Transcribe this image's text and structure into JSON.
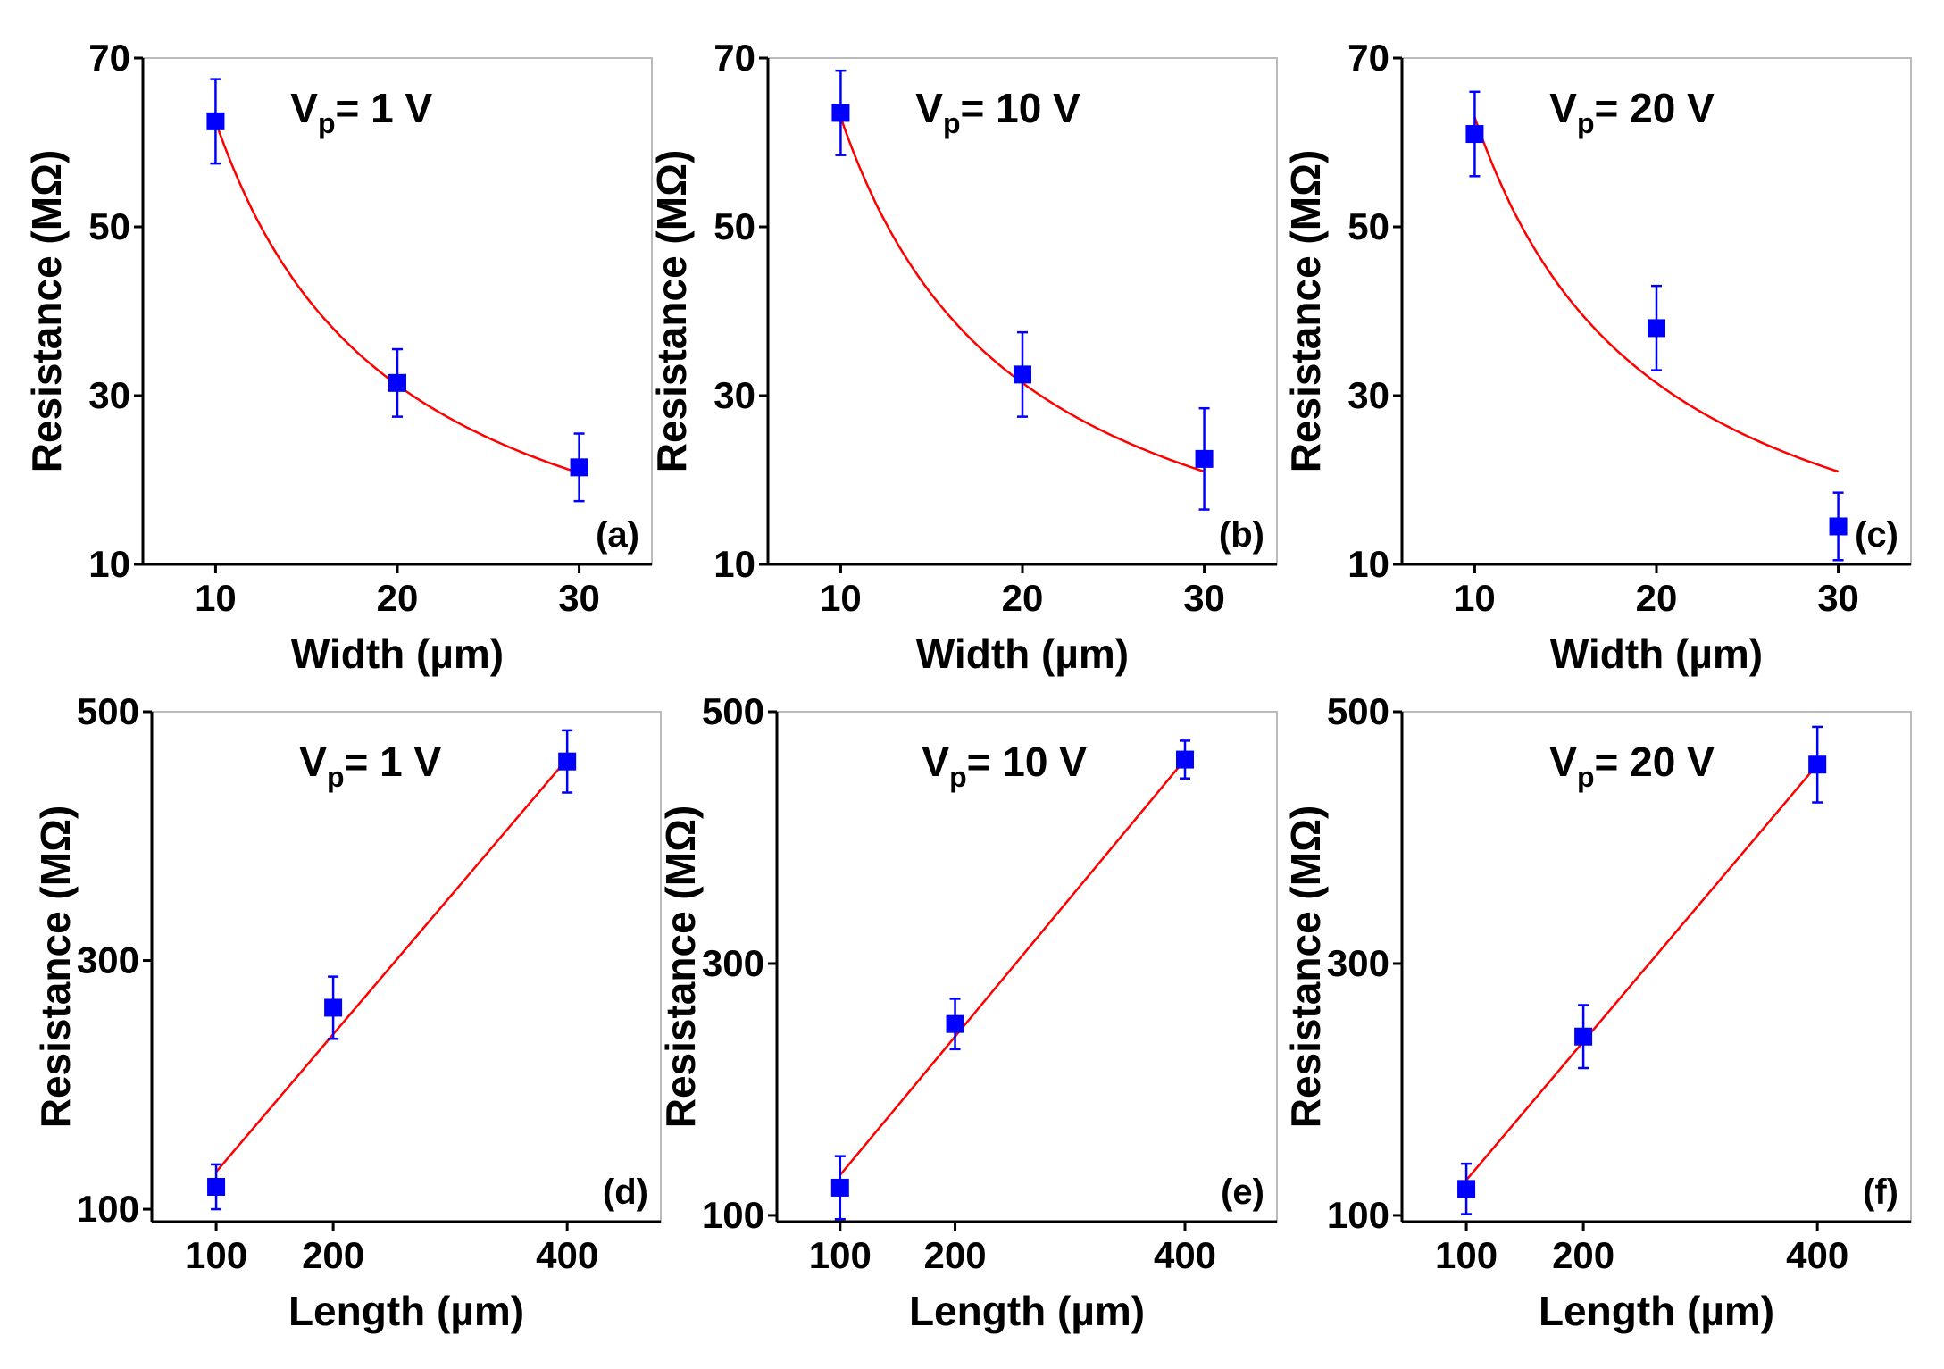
{
  "chart_data": [
    {
      "id": "a",
      "type": "scatter",
      "panel_label": "(a)",
      "annotation": {
        "prefix": "V",
        "sub": "p",
        "value": "= 1 V"
      },
      "xlabel": "Width (µm)",
      "ylabel": "Resistance (MΩ)",
      "xlim": [
        6,
        34
      ],
      "ylim": [
        10,
        70
      ],
      "xticks": [
        10,
        20,
        30
      ],
      "xtick_labels": [
        "10",
        "20",
        "30"
      ],
      "yticks": [
        10,
        30,
        50,
        70
      ],
      "ytick_labels": [
        "10",
        "30",
        "50",
        "70"
      ],
      "series": [
        {
          "name": "measured",
          "x": [
            10,
            20,
            30
          ],
          "y": [
            62.5,
            31.5,
            21.5
          ],
          "yerr": [
            5,
            4,
            4
          ]
        },
        {
          "name": "fit",
          "kind": "fit-inverse",
          "k": 625,
          "x_range": [
            10,
            30
          ]
        }
      ]
    },
    {
      "id": "b",
      "type": "scatter",
      "panel_label": "(b)",
      "annotation": {
        "prefix": "V",
        "sub": "p",
        "value": "= 10 V"
      },
      "xlabel": "Width (µm)",
      "ylabel": "Resistance (MΩ)",
      "xlim": [
        6,
        34
      ],
      "ylim": [
        10,
        70
      ],
      "xticks": [
        10,
        20,
        30
      ],
      "xtick_labels": [
        "10",
        "20",
        "30"
      ],
      "yticks": [
        10,
        30,
        50,
        70
      ],
      "ytick_labels": [
        "10",
        "30",
        "50",
        "70"
      ],
      "series": [
        {
          "name": "measured",
          "x": [
            10,
            20,
            30
          ],
          "y": [
            63.5,
            32.5,
            22.5
          ],
          "yerr": [
            5,
            5,
            6
          ]
        },
        {
          "name": "fit",
          "kind": "fit-inverse",
          "k": 630,
          "x_range": [
            10,
            30
          ]
        }
      ]
    },
    {
      "id": "c",
      "type": "scatter",
      "panel_label": "(c)",
      "annotation": {
        "prefix": "V",
        "sub": "p",
        "value": "= 20 V"
      },
      "xlabel": "Width (µm)",
      "ylabel": "Resistance (MΩ)",
      "xlim": [
        6,
        34
      ],
      "ylim": [
        10,
        70
      ],
      "xticks": [
        10,
        20,
        30
      ],
      "xtick_labels": [
        "10",
        "20",
        "30"
      ],
      "yticks": [
        10,
        30,
        50,
        70
      ],
      "ytick_labels": [
        "10",
        "30",
        "50",
        "70"
      ],
      "series": [
        {
          "name": "measured",
          "x": [
            10,
            20,
            30
          ],
          "y": [
            61,
            38,
            14.5
          ],
          "yerr": [
            5,
            5,
            4
          ]
        },
        {
          "name": "fit",
          "kind": "fit-inverse",
          "k": 630,
          "x_range": [
            10,
            30
          ]
        }
      ]
    },
    {
      "id": "d",
      "type": "scatter",
      "panel_label": "(d)",
      "annotation": {
        "prefix": "V",
        "sub": "p",
        "value": "= 1 V"
      },
      "xlabel": "Length (µm)",
      "ylabel": "Resistance (MΩ)",
      "xlim": [
        45,
        480
      ],
      "ylim": [
        90,
        500
      ],
      "xticks": [
        100,
        200,
        400
      ],
      "xtick_labels": [
        "100",
        "200",
        "400"
      ],
      "yticks": [
        100,
        300,
        500
      ],
      "ytick_labels": [
        "100",
        "300",
        "500"
      ],
      "series": [
        {
          "name": "measured",
          "x": [
            100,
            200,
            400
          ],
          "y": [
            118,
            262,
            460
          ],
          "yerr": [
            18,
            25,
            25
          ]
        },
        {
          "name": "fit",
          "kind": "fit-linear",
          "x0": 100,
          "y0": 130,
          "x1": 400,
          "y1": 462
        }
      ]
    },
    {
      "id": "e",
      "type": "scatter",
      "panel_label": "(e)",
      "annotation": {
        "prefix": "V",
        "sub": "p",
        "value": "= 10 V"
      },
      "xlabel": "Length (µm)",
      "ylabel": "Resistance (MΩ)",
      "xlim": [
        45,
        480
      ],
      "ylim": [
        95,
        500
      ],
      "xticks": [
        100,
        200,
        400
      ],
      "xtick_labels": [
        "100",
        "200",
        "400"
      ],
      "yticks": [
        100,
        300,
        500
      ],
      "ytick_labels": [
        "100",
        "300",
        "500"
      ],
      "series": [
        {
          "name": "measured",
          "x": [
            100,
            200,
            400
          ],
          "y": [
            122,
            252,
            462
          ],
          "yerr": [
            25,
            20,
            15
          ]
        },
        {
          "name": "fit",
          "kind": "fit-linear",
          "x0": 100,
          "y0": 132,
          "x1": 400,
          "y1": 462
        }
      ]
    },
    {
      "id": "f",
      "type": "scatter",
      "panel_label": "(f)",
      "annotation": {
        "prefix": "V",
        "sub": "p",
        "value": "= 20 V"
      },
      "xlabel": "Length (µm)",
      "ylabel": "Resistance (MΩ)",
      "xlim": [
        45,
        480
      ],
      "ylim": [
        95,
        500
      ],
      "xticks": [
        100,
        200,
        400
      ],
      "xtick_labels": [
        "100",
        "200",
        "400"
      ],
      "yticks": [
        100,
        300,
        500
      ],
      "ytick_labels": [
        "100",
        "300",
        "500"
      ],
      "series": [
        {
          "name": "measured",
          "x": [
            100,
            200,
            400
          ],
          "y": [
            121,
            242,
            458
          ],
          "yerr": [
            20,
            25,
            30
          ]
        },
        {
          "name": "fit",
          "kind": "fit-linear",
          "x0": 100,
          "y0": 128,
          "x1": 400,
          "y1": 458
        }
      ]
    }
  ],
  "colors": {
    "marker": "#0000ff",
    "fit": "#ff0000",
    "axis": "#000000"
  }
}
